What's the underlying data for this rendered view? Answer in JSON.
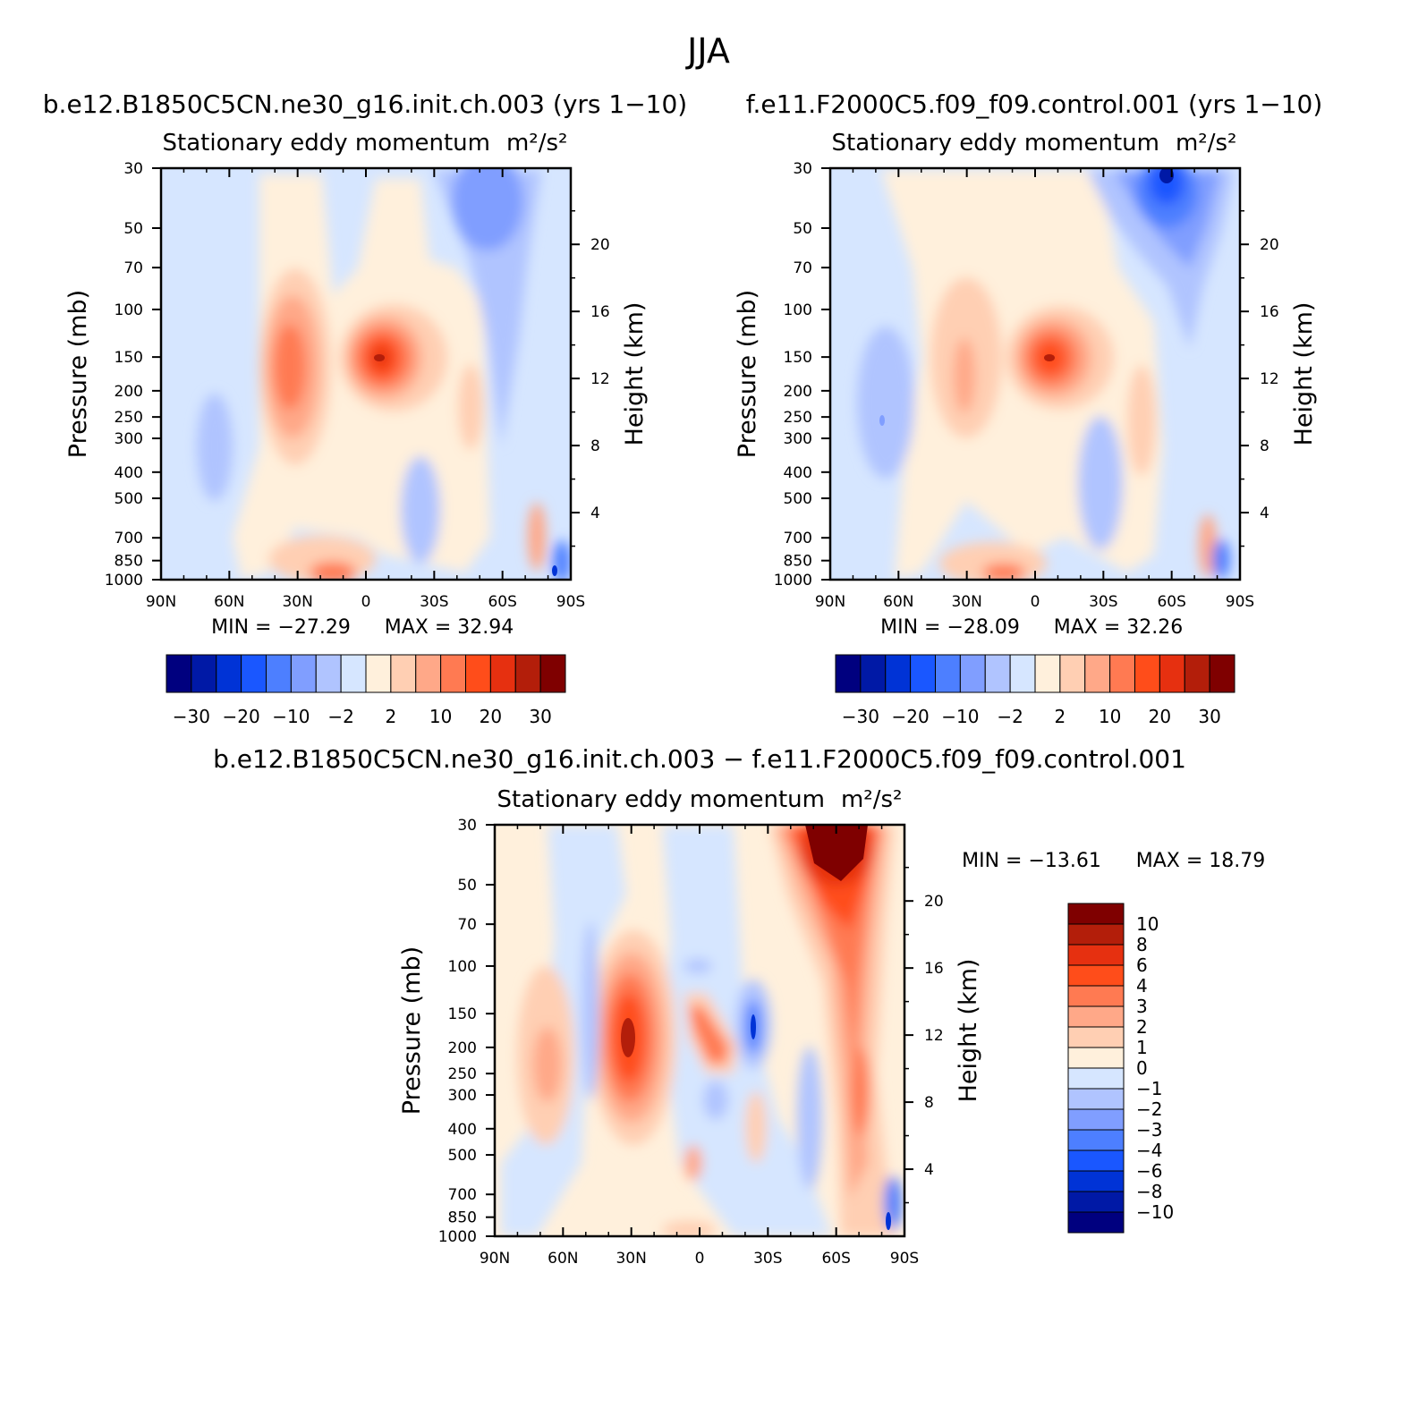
{
  "title": "JJA",
  "panels": [
    {
      "case_title": "b.e12.B1850C5CN.ne30_g16.init.ch.003 (yrs 1−10)",
      "subtitle": "Stationary eddy momentum",
      "units": "m²/s²",
      "min_text": "MIN = −27.29",
      "max_text": "MAX = 32.94"
    },
    {
      "case_title": "f.e11.F2000C5.f09_f09.control.001 (yrs 1−10)",
      "subtitle": "Stationary eddy momentum",
      "units": "m²/s²",
      "min_text": "MIN = −28.09",
      "max_text": "MAX = 32.26"
    },
    {
      "case_title": "b.e12.B1850C5CN.ne30_g16.init.ch.003 − f.e11.F2000C5.f09_f09.control.001",
      "subtitle": "Stationary eddy momentum",
      "units": "m²/s²",
      "min_text": "MIN = −13.61",
      "max_text": "MAX = 18.79"
    }
  ],
  "colorbar_top": {
    "colors": [
      "#00007f",
      "#0019a6",
      "#0033d6",
      "#1a57ff",
      "#4d7fff",
      "#809eff",
      "#b0c4ff",
      "#d6e6ff",
      "#fff0dc",
      "#ffcfb3",
      "#ffa888",
      "#ff7a52",
      "#ff4d1a",
      "#e63010",
      "#b31e0a",
      "#7f0000"
    ],
    "labels": [
      "−30",
      "−20",
      "−10",
      "−2",
      "2",
      "10",
      "20",
      "30"
    ]
  },
  "colorbar_diff": {
    "colors": [
      "#7f0000",
      "#b31e0a",
      "#e63010",
      "#ff4d1a",
      "#ff7a52",
      "#ffa888",
      "#ffcfb3",
      "#fff0dc",
      "#d6e6ff",
      "#b0c4ff",
      "#809eff",
      "#4d7fff",
      "#1a57ff",
      "#0033d6",
      "#0019a6",
      "#00007f"
    ],
    "labels": [
      "10",
      "8",
      "6",
      "4",
      "3",
      "2",
      "1",
      "0",
      "−1",
      "−2",
      "−3",
      "−4",
      "−6",
      "−8",
      "−10"
    ]
  },
  "chart_data": [
    {
      "type": "heatmap",
      "title": "Stationary eddy momentum",
      "units": "m²/s²",
      "xlabel": "",
      "ylabel": "Pressure (mb)",
      "y2label": "Height (km)",
      "x_ticks": [
        "90N",
        "60N",
        "30N",
        "0",
        "30S",
        "60S",
        "90S"
      ],
      "y_ticks": [
        30,
        50,
        70,
        100,
        150,
        200,
        250,
        300,
        400,
        500,
        700,
        850,
        1000
      ],
      "y2_ticks": [
        4,
        8,
        12,
        16,
        20
      ],
      "ylim": [
        1000,
        30
      ],
      "y_scale": "log",
      "contour_levels": [
        -30,
        -25,
        -20,
        -15,
        -10,
        -6,
        -2,
        0,
        2,
        6,
        10,
        15,
        20,
        25,
        30
      ],
      "min": -27.29,
      "max": 32.94,
      "features": [
        {
          "lat": 10,
          "p": 150,
          "value": 32.94
        },
        {
          "lat": 35,
          "p": 170,
          "value": 14
        },
        {
          "lat": 15,
          "p": 990,
          "value": 12
        },
        {
          "lat": -65,
          "p": 40,
          "value": -5
        },
        {
          "lat": 65,
          "p": 300,
          "value": -3
        },
        {
          "lat": -85,
          "p": 920,
          "value": -27.29
        }
      ]
    },
    {
      "type": "heatmap",
      "title": "Stationary eddy momentum",
      "units": "m²/s²",
      "xlabel": "",
      "ylabel": "Pressure (mb)",
      "y2label": "Height (km)",
      "x_ticks": [
        "90N",
        "60N",
        "30N",
        "0",
        "30S",
        "60S",
        "90S"
      ],
      "y_ticks": [
        30,
        50,
        70,
        100,
        150,
        200,
        250,
        300,
        400,
        500,
        700,
        850,
        1000
      ],
      "y2_ticks": [
        4,
        8,
        12,
        16,
        20
      ],
      "ylim": [
        1000,
        30
      ],
      "y_scale": "log",
      "contour_levels": [
        -30,
        -25,
        -20,
        -15,
        -10,
        -6,
        -2,
        0,
        2,
        6,
        10,
        15,
        20,
        25,
        30
      ],
      "min": -28.09,
      "max": 32.26,
      "features": [
        {
          "lat": -7,
          "p": 150,
          "value": 32.26
        },
        {
          "lat": -60,
          "p": 32,
          "value": -28.09
        },
        {
          "lat": 30,
          "p": 180,
          "value": 6
        },
        {
          "lat": 65,
          "p": 250,
          "value": -4
        },
        {
          "lat": 15,
          "p": 990,
          "value": 12
        },
        {
          "lat": -45,
          "p": 250,
          "value": 3
        }
      ]
    },
    {
      "type": "heatmap",
      "title": "Stationary eddy momentum",
      "units": "m²/s²",
      "xlabel": "",
      "ylabel": "Pressure (mb)",
      "y2label": "Height (km)",
      "x_ticks": [
        "90N",
        "60N",
        "30N",
        "0",
        "30S",
        "60S",
        "90S"
      ],
      "y_ticks": [
        30,
        50,
        70,
        100,
        150,
        200,
        250,
        300,
        400,
        500,
        700,
        850,
        1000
      ],
      "y2_ticks": [
        4,
        8,
        12,
        16,
        20
      ],
      "ylim": [
        1000,
        30
      ],
      "y_scale": "log",
      "contour_levels": [
        -10,
        -8,
        -6,
        -4,
        -3,
        -2,
        -1,
        0,
        1,
        2,
        3,
        4,
        6,
        8,
        10
      ],
      "min": -13.61,
      "max": 18.79,
      "features": [
        {
          "lat": -60,
          "p": 35,
          "value": 18.79
        },
        {
          "lat": 30,
          "p": 170,
          "value": 10
        },
        {
          "lat": 5,
          "p": 180,
          "value": 6
        },
        {
          "lat": -22,
          "p": 170,
          "value": -6
        },
        {
          "lat": 72,
          "p": 200,
          "value": 3
        },
        {
          "lat": -85,
          "p": 950,
          "value": -13.61
        }
      ]
    }
  ]
}
